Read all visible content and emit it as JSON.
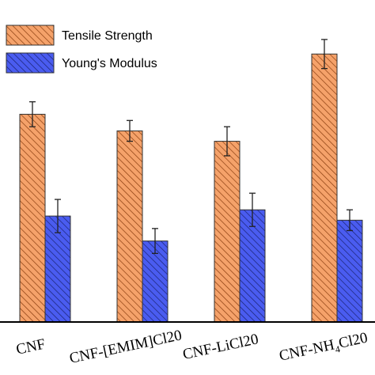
{
  "chart_data": {
    "type": "bar",
    "categories": [
      "CNF",
      "CNF-[EMIM]Cl20",
      "CNF-LiCl20",
      "CNF-NH4Cl20"
    ],
    "category_label_parts": [
      {
        "main": "CNF",
        "sub": "",
        "tail": ""
      },
      {
        "main": "CNF-[EMIM]Cl20",
        "sub": "",
        "tail": ""
      },
      {
        "main": "CNF-LiCl20",
        "sub": "",
        "tail": ""
      },
      {
        "main": "CNF-NH",
        "sub": "4",
        "tail": "Cl20"
      }
    ],
    "series": [
      {
        "name": "Tensile Strength",
        "color": "#f5a26a",
        "hatch_color": "#8a3d0f",
        "values": [
          100,
          92,
          87,
          129
        ],
        "errors": [
          6,
          5,
          7,
          7
        ]
      },
      {
        "name": "Young's Modulus",
        "color": "#4a5cf0",
        "hatch_color": "#1a2370",
        "values": [
          51,
          39,
          54,
          49
        ],
        "errors": [
          8,
          6,
          8,
          5
        ]
      }
    ],
    "ylim": [
      0,
      155
    ],
    "legend_position": "top-left",
    "grid": false
  }
}
